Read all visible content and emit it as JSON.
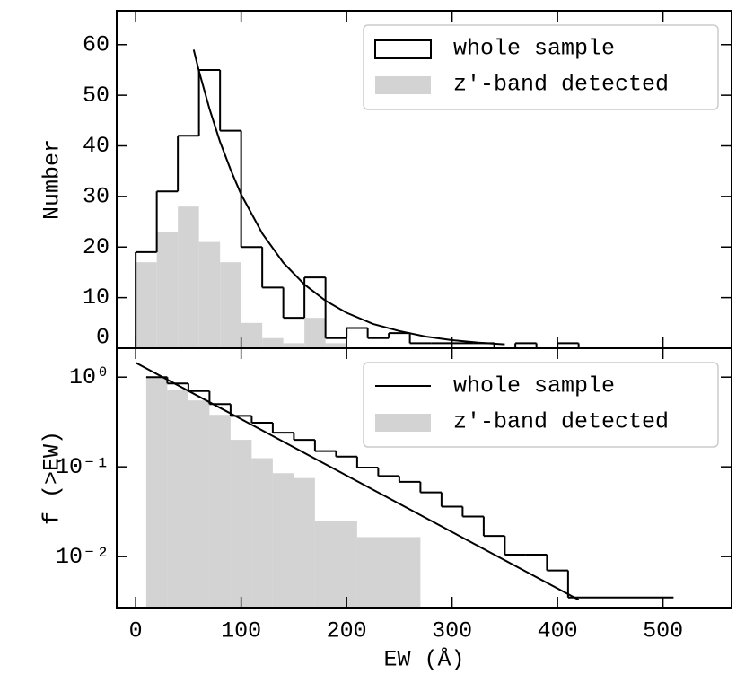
{
  "chart_data": [
    {
      "type": "histogram",
      "ylabel": "Number",
      "xlim": [
        -18,
        565
      ],
      "xticks": [
        0,
        100,
        200,
        300,
        400,
        500
      ],
      "ylim": [
        0,
        66.7
      ],
      "yticks": [
        0,
        10,
        20,
        30,
        40,
        50,
        60
      ],
      "legend": "upper right",
      "series": [
        {
          "name": "whole sample",
          "style": "step",
          "color": "#000000",
          "bins": [
            0,
            20,
            40,
            60,
            80,
            100,
            120,
            140,
            160,
            180,
            200,
            220,
            240,
            260,
            280,
            300,
            320,
            340,
            360,
            380,
            400,
            420
          ],
          "values": [
            19,
            31,
            42,
            55,
            43,
            20,
            12,
            6,
            14,
            2,
            4,
            2,
            3,
            1,
            1,
            1,
            1,
            0,
            1,
            0,
            1
          ]
        },
        {
          "name": "z′-band detected",
          "style": "fill",
          "color": "#d3d3d3",
          "bins": [
            0,
            20,
            40,
            60,
            80,
            100,
            120,
            140,
            160,
            180,
            200
          ],
          "values": [
            17,
            23,
            28,
            21,
            17,
            5,
            2,
            1,
            6,
            1
          ]
        }
      ],
      "fit": {
        "color": "#000000",
        "x": [
          55,
          60,
          70,
          80,
          90,
          100,
          120,
          140,
          160,
          180,
          200,
          225,
          250,
          275,
          300,
          325,
          350
        ],
        "values": [
          59,
          54.8,
          47.3,
          40.8,
          35.3,
          30.4,
          22.7,
          16.9,
          12.6,
          9.4,
          7.0,
          4.8,
          3.4,
          2.3,
          1.6,
          1.1,
          0.77
        ]
      }
    },
    {
      "type": "histogram",
      "ylabel": "f (>EW)",
      "xlabel": "EW (Å)",
      "xlim": [
        -18,
        565
      ],
      "xticks": [
        0,
        100,
        200,
        300,
        400,
        500
      ],
      "ylim": [
        0.0027,
        2.1
      ],
      "log_y": true,
      "yticks": [
        {
          "value": 1,
          "label": "10⁰"
        },
        {
          "value": 0.1,
          "label": "10⁻¹"
        },
        {
          "value": 0.01,
          "label": "10⁻²"
        }
      ],
      "legend": "upper right",
      "series": [
        {
          "name": "whole sample",
          "style": "step",
          "color": "#000000",
          "bins": [
            10,
            30,
            50,
            70,
            90,
            110,
            130,
            150,
            170,
            190,
            210,
            230,
            250,
            270,
            290,
            310,
            330,
            350,
            370,
            390,
            410,
            510
          ],
          "values": [
            1.0,
            0.85,
            0.7,
            0.5,
            0.37,
            0.31,
            0.24,
            0.2,
            0.15,
            0.13,
            0.098,
            0.079,
            0.068,
            0.052,
            0.036,
            0.028,
            0.017,
            0.0105,
            0.0105,
            0.007,
            0.0035
          ]
        },
        {
          "name": "z′-band detected",
          "style": "fill",
          "color": "#d3d3d3",
          "bins": [
            10,
            30,
            50,
            70,
            90,
            110,
            130,
            150,
            170,
            210,
            270
          ],
          "values": [
            1.0,
            0.72,
            0.55,
            0.38,
            0.2,
            0.125,
            0.085,
            0.075,
            0.025,
            0.0165
          ]
        }
      ],
      "fit": {
        "color": "#000000",
        "x": [
          0,
          420
        ],
        "values": [
          1.45,
          0.0033
        ]
      }
    }
  ]
}
